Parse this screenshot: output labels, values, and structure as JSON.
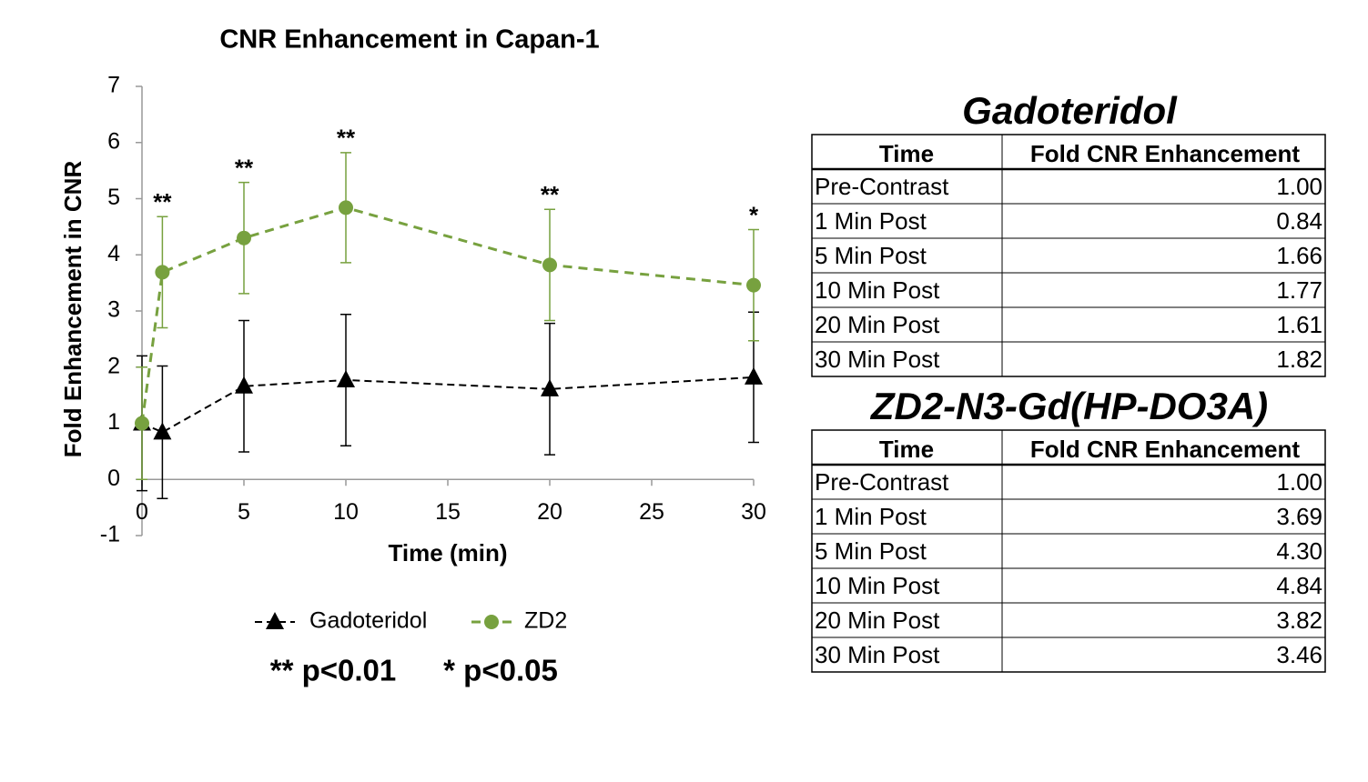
{
  "chart_data": {
    "type": "line",
    "title": "CNR Enhancement in Capan-1",
    "x_label": "Time (min)",
    "y_label": "Fold Enhancement in CNR",
    "x": [
      0,
      1,
      5,
      10,
      20,
      30
    ],
    "series": [
      {
        "name": "Gadoteridol",
        "color": "#000000",
        "marker": "triangle",
        "dash": "dashed",
        "values": [
          1.0,
          0.84,
          1.66,
          1.77,
          1.61,
          1.82
        ],
        "errors": [
          1.2,
          1.18,
          1.17,
          1.17,
          1.17,
          1.16
        ]
      },
      {
        "name": "ZD2",
        "color": "#77a13f",
        "marker": "circle",
        "dash": "dashed",
        "values": [
          1.0,
          3.69,
          4.3,
          4.84,
          3.82,
          3.46
        ],
        "errors": [
          1.0,
          0.99,
          0.99,
          0.98,
          0.99,
          0.99
        ]
      }
    ],
    "annotations": [
      {
        "x": 1,
        "text": "**"
      },
      {
        "x": 5,
        "text": "**"
      },
      {
        "x": 10,
        "text": "**"
      },
      {
        "x": 20,
        "text": "**"
      },
      {
        "x": 30,
        "text": "*"
      }
    ],
    "footnotes": [
      "** p<0.01",
      "* p<0.05"
    ],
    "xlim": [
      0,
      30
    ],
    "xticks": [
      0,
      5,
      10,
      15,
      20,
      25,
      30
    ],
    "ylim": [
      -1,
      7
    ],
    "yticks": [
      -1,
      0,
      1,
      2,
      3,
      4,
      5,
      6,
      7
    ],
    "grid": false,
    "legend": "bottom"
  },
  "tables": [
    {
      "title": "Gadoteridol",
      "header": [
        "Time",
        "Fold CNR Enhancement"
      ],
      "rows": [
        [
          "Pre-Contrast",
          "1.00"
        ],
        [
          "1 Min Post",
          "0.84"
        ],
        [
          "5 Min Post",
          "1.66"
        ],
        [
          "10 Min Post",
          "1.77"
        ],
        [
          "20 Min Post",
          "1.61"
        ],
        [
          "30 Min Post",
          "1.82"
        ]
      ]
    },
    {
      "title": "ZD2-N3-Gd(HP-DO3A)",
      "header": [
        "Time",
        "Fold CNR Enhancement"
      ],
      "rows": [
        [
          "Pre-Contrast",
          "1.00"
        ],
        [
          "1 Min Post",
          "3.69"
        ],
        [
          "5 Min Post",
          "4.30"
        ],
        [
          "10 Min Post",
          "4.84"
        ],
        [
          "20 Min Post",
          "3.82"
        ],
        [
          "30 Min Post",
          "3.46"
        ]
      ]
    }
  ]
}
